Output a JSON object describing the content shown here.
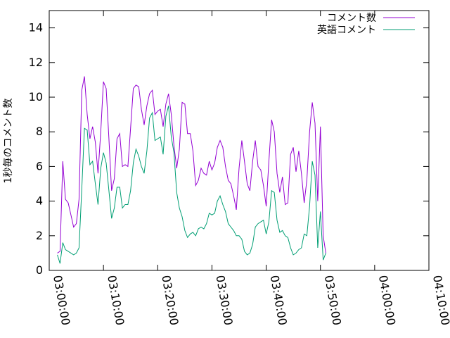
{
  "chart_data": {
    "type": "line",
    "title": "",
    "xlabel": "",
    "ylabel": "1秒毎のコメント数",
    "xlim_seconds": [
      0,
      4200
    ],
    "ylim": [
      0,
      15
    ],
    "grid": false,
    "legend_position": "top-right",
    "x_ticks": [
      {
        "value": 0,
        "label": "03:00:00"
      },
      {
        "value": 600,
        "label": "03:10:00"
      },
      {
        "value": 1200,
        "label": "03:20:00"
      },
      {
        "value": 1800,
        "label": "03:30:00"
      },
      {
        "value": 2400,
        "label": "03:40:00"
      },
      {
        "value": 3000,
        "label": "03:50:00"
      },
      {
        "value": 3600,
        "label": "04:00:00"
      },
      {
        "value": 4200,
        "label": "04:10:00"
      }
    ],
    "y_ticks": [
      0,
      2,
      4,
      6,
      8,
      10,
      12,
      14
    ],
    "x_step_seconds": 30,
    "x_start_seconds": 90,
    "series": [
      {
        "name": "コメント数",
        "color": "#9400d3",
        "values": [
          1.0,
          1.1,
          6.3,
          4.1,
          3.9,
          3.2,
          2.5,
          2.7,
          4.1,
          10.4,
          11.2,
          9.0,
          7.6,
          8.3,
          7.4,
          5.6,
          8.0,
          10.9,
          10.5,
          7.6,
          4.6,
          5.3,
          7.6,
          7.9,
          6.0,
          6.1,
          6.0,
          8.2,
          10.5,
          10.7,
          10.6,
          9.3,
          8.4,
          9.5,
          10.2,
          10.4,
          9.0,
          9.2,
          9.3,
          8.3,
          9.6,
          10.2,
          9.0,
          7.2,
          5.9,
          7.0,
          9.7,
          9.6,
          7.9,
          7.9,
          6.9,
          4.9,
          5.2,
          5.9,
          5.6,
          5.5,
          6.3,
          5.8,
          6.2,
          7.1,
          7.5,
          7.1,
          6.0,
          5.2,
          5.0,
          4.3,
          3.5,
          5.9,
          7.5,
          6.3,
          5.0,
          4.6,
          6.3,
          7.5,
          6.0,
          5.8,
          4.9,
          3.7,
          6.3,
          8.7,
          8.0,
          5.6,
          4.5,
          5.4,
          3.8,
          3.9,
          6.7,
          7.1,
          5.7,
          6.9,
          5.6,
          3.9,
          5.2,
          8.0,
          9.7,
          8.5,
          4.0,
          8.3,
          2.0,
          1.0
        ]
      },
      {
        "name": "英語コメント",
        "color": "#009e73",
        "values": [
          0.9,
          0.4,
          1.6,
          1.2,
          1.1,
          1.0,
          0.9,
          1.0,
          1.3,
          4.7,
          8.2,
          8.1,
          6.1,
          6.3,
          5.0,
          3.8,
          5.9,
          6.8,
          6.2,
          4.6,
          3.0,
          3.6,
          4.8,
          4.8,
          3.6,
          3.8,
          3.8,
          4.6,
          6.2,
          7.0,
          6.6,
          6.0,
          5.6,
          6.9,
          8.8,
          9.1,
          7.5,
          7.6,
          7.7,
          6.7,
          8.9,
          9.5,
          7.7,
          6.8,
          4.5,
          3.6,
          3.1,
          2.3,
          1.9,
          2.1,
          2.2,
          2.0,
          2.4,
          2.5,
          2.4,
          2.7,
          3.3,
          3.2,
          3.3,
          4.0,
          4.3,
          3.8,
          3.4,
          2.7,
          2.5,
          2.3,
          2.0,
          2.0,
          1.8,
          1.1,
          0.9,
          1.0,
          1.5,
          2.5,
          2.7,
          2.8,
          2.9,
          2.1,
          2.8,
          4.6,
          4.5,
          2.9,
          2.2,
          2.3,
          2.0,
          1.9,
          1.3,
          0.9,
          1.0,
          1.2,
          1.3,
          2.1,
          2.0,
          3.7,
          6.3,
          5.5,
          1.3,
          3.4,
          0.6,
          1.0
        ]
      }
    ]
  }
}
